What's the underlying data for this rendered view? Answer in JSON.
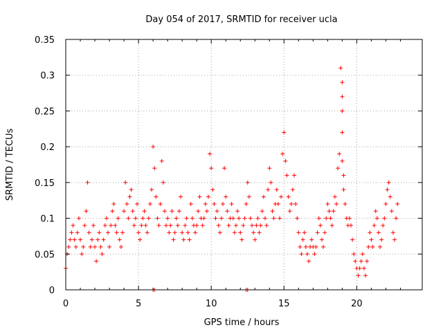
{
  "chart_data": {
    "type": "scatter",
    "title": "Day 054 of 2017, SRMTID for receiver ucla",
    "xlabel": "GPS time / hours",
    "ylabel": "SRMTID / TECUs",
    "xlim": [
      0,
      24.5
    ],
    "ylim": [
      0,
      0.35
    ],
    "xticks": [
      0,
      5,
      10,
      15,
      20
    ],
    "xtick_labels": [
      "0",
      "5",
      "10",
      "15",
      "20"
    ],
    "yticks": [
      0,
      0.05,
      0.1,
      0.15,
      0.2,
      0.25,
      0.3,
      0.35
    ],
    "ytick_labels": [
      "0",
      "0.05",
      "0.1",
      "0.15",
      "0.2",
      "0.25",
      "0.3",
      "0.35"
    ],
    "grid": true,
    "marker": "plus",
    "color": "#ff0000",
    "legend": "none",
    "series": [
      {
        "name": "SRMTID",
        "x": [
          0.0,
          0.1,
          0.2,
          0.3,
          0.4,
          0.5,
          0.6,
          0.7,
          0.8,
          0.9,
          1.0,
          1.1,
          1.2,
          1.3,
          1.4,
          1.5,
          1.6,
          1.7,
          1.8,
          1.9,
          2.0,
          2.1,
          2.2,
          2.3,
          2.4,
          2.5,
          2.6,
          2.7,
          2.8,
          2.9,
          3.0,
          3.1,
          3.2,
          3.3,
          3.4,
          3.5,
          3.6,
          3.7,
          3.8,
          3.9,
          4.0,
          4.1,
          4.2,
          4.3,
          4.4,
          4.5,
          4.6,
          4.7,
          4.8,
          4.9,
          5.0,
          5.1,
          5.2,
          5.3,
          5.4,
          5.5,
          5.6,
          5.7,
          5.8,
          5.9,
          6.0,
          6.1,
          6.2,
          6.3,
          6.4,
          6.5,
          6.6,
          6.7,
          6.8,
          6.9,
          7.0,
          7.1,
          7.2,
          7.3,
          7.4,
          7.5,
          7.6,
          7.7,
          7.8,
          7.9,
          8.0,
          8.1,
          8.2,
          8.3,
          8.4,
          8.5,
          8.6,
          8.7,
          8.8,
          8.9,
          9.0,
          9.1,
          9.2,
          9.3,
          9.4,
          9.5,
          9.6,
          9.7,
          9.8,
          9.9,
          10.0,
          10.1,
          10.2,
          10.3,
          10.4,
          10.5,
          10.6,
          10.7,
          10.8,
          10.9,
          11.0,
          11.1,
          11.2,
          11.3,
          11.4,
          11.5,
          11.6,
          11.7,
          11.8,
          11.9,
          12.0,
          12.1,
          12.2,
          12.3,
          12.4,
          12.5,
          12.6,
          12.7,
          12.8,
          12.9,
          13.0,
          13.1,
          13.2,
          13.3,
          13.4,
          13.5,
          13.6,
          13.7,
          13.8,
          13.9,
          14.0,
          14.1,
          14.2,
          14.3,
          14.4,
          14.5,
          14.6,
          14.7,
          14.8,
          14.9,
          15.0,
          15.1,
          15.2,
          15.3,
          15.4,
          15.5,
          15.6,
          15.7,
          15.8,
          15.9,
          16.0,
          16.1,
          16.2,
          16.3,
          16.4,
          16.5,
          16.6,
          16.7,
          16.8,
          16.9,
          17.0,
          17.1,
          17.2,
          17.3,
          17.4,
          17.5,
          17.6,
          17.7,
          17.8,
          17.9,
          18.0,
          18.1,
          18.2,
          18.3,
          18.4,
          18.5,
          18.6,
          18.7,
          18.8,
          18.9,
          19.0,
          19.0,
          19.0,
          19.0,
          19.0,
          19.1,
          19.1,
          19.2,
          19.3,
          19.4,
          19.5,
          19.6,
          19.7,
          19.8,
          19.9,
          20.0,
          20.1,
          20.2,
          20.3,
          20.4,
          20.5,
          20.6,
          20.7,
          20.8,
          20.9,
          21.0,
          21.1,
          21.2,
          21.3,
          21.4,
          21.5,
          21.6,
          21.7,
          21.8,
          21.9,
          22.0,
          22.1,
          22.2,
          22.3,
          22.4,
          22.5,
          22.6,
          22.7,
          22.8,
          6.0,
          6.1,
          12.4,
          12.5
        ],
        "y": [
          0.03,
          0.05,
          0.06,
          0.07,
          0.08,
          0.09,
          0.07,
          0.06,
          0.08,
          0.1,
          0.07,
          0.05,
          0.06,
          0.09,
          0.11,
          0.15,
          0.08,
          0.06,
          0.07,
          0.09,
          0.06,
          0.04,
          0.07,
          0.08,
          0.06,
          0.05,
          0.07,
          0.09,
          0.1,
          0.08,
          0.06,
          0.09,
          0.11,
          0.12,
          0.09,
          0.08,
          0.1,
          0.07,
          0.06,
          0.08,
          0.11,
          0.15,
          0.12,
          0.1,
          0.13,
          0.14,
          0.11,
          0.09,
          0.1,
          0.12,
          0.08,
          0.07,
          0.09,
          0.1,
          0.11,
          0.09,
          0.08,
          0.1,
          0.12,
          0.14,
          0.2,
          0.17,
          0.13,
          0.1,
          0.09,
          0.12,
          0.18,
          0.15,
          0.11,
          0.09,
          0.1,
          0.08,
          0.09,
          0.11,
          0.07,
          0.08,
          0.1,
          0.09,
          0.11,
          0.13,
          0.08,
          0.07,
          0.09,
          0.1,
          0.08,
          0.07,
          0.12,
          0.1,
          0.09,
          0.08,
          0.09,
          0.11,
          0.13,
          0.1,
          0.09,
          0.1,
          0.12,
          0.11,
          0.13,
          0.19,
          0.17,
          0.14,
          0.12,
          0.1,
          0.11,
          0.09,
          0.08,
          0.1,
          0.12,
          0.17,
          0.13,
          0.11,
          0.09,
          0.1,
          0.12,
          0.1,
          0.08,
          0.09,
          0.11,
          0.1,
          0.08,
          0.07,
          0.09,
          0.1,
          0.12,
          0.15,
          0.13,
          0.1,
          0.09,
          0.08,
          0.07,
          0.09,
          0.1,
          0.08,
          0.09,
          0.11,
          0.13,
          0.1,
          0.09,
          0.14,
          0.17,
          0.15,
          0.11,
          0.1,
          0.12,
          0.14,
          0.12,
          0.1,
          0.13,
          0.19,
          0.22,
          0.18,
          0.16,
          0.13,
          0.11,
          0.12,
          0.14,
          0.16,
          0.12,
          0.1,
          0.08,
          0.06,
          0.05,
          0.07,
          0.08,
          0.06,
          0.05,
          0.04,
          0.06,
          0.07,
          0.06,
          0.05,
          0.06,
          0.08,
          0.1,
          0.09,
          0.07,
          0.06,
          0.08,
          0.1,
          0.12,
          0.11,
          0.1,
          0.09,
          0.11,
          0.13,
          0.12,
          0.17,
          0.19,
          0.31,
          0.29,
          0.27,
          0.25,
          0.22,
          0.18,
          0.16,
          0.14,
          0.12,
          0.1,
          0.09,
          0.1,
          0.09,
          0.07,
          0.05,
          0.04,
          0.03,
          0.02,
          0.03,
          0.04,
          0.05,
          0.03,
          0.02,
          0.04,
          0.06,
          0.08,
          0.07,
          0.06,
          0.09,
          0.11,
          0.1,
          0.08,
          0.06,
          0.07,
          0.09,
          0.1,
          0.12,
          0.14,
          0.15,
          0.13,
          0.11,
          0.08,
          0.07,
          0.1,
          0.12,
          0.0,
          0.0,
          0.0,
          0.0
        ]
      }
    ]
  }
}
